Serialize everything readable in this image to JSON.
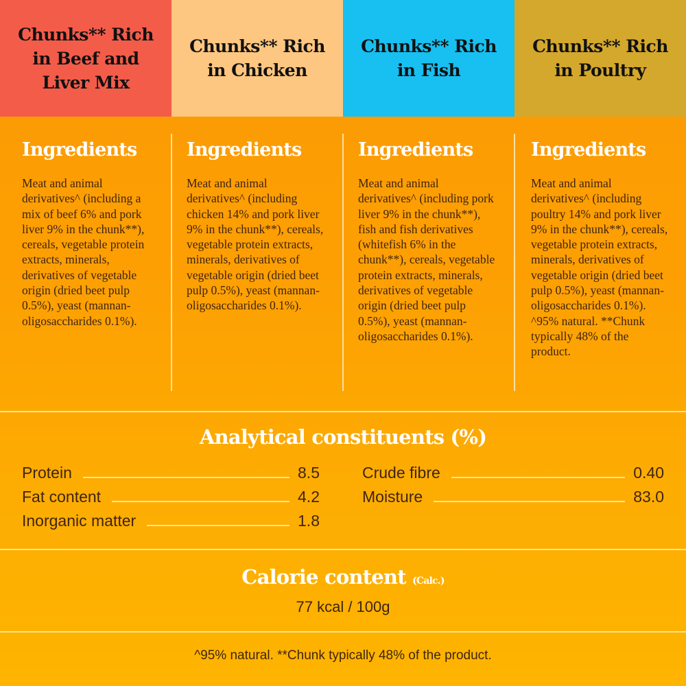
{
  "colors": {
    "beef": "#f45c4a",
    "chicken": "#fdc681",
    "fish": "#17c0f0",
    "poultry": "#d4a82d",
    "background": "#fca003",
    "text": "#3f2410"
  },
  "variants": [
    {
      "title": "Chunks** Rich in Beef and Liver Mix",
      "heading": "Ingredients",
      "text": "Meat and animal derivatives^ (including a mix of beef 6% and pork liver 9% in the chunk**), cereals, vegetable protein extracts, minerals, derivatives of vegetable origin (dried beet pulp 0.5%), yeast (mannan-oligosaccharides 0.1%)."
    },
    {
      "title": "Chunks** Rich in Chicken",
      "heading": "Ingredients",
      "text": "Meat and animal derivatives^ (including chicken 14% and pork liver 9% in the chunk**), cereals, vegetable protein extracts, minerals, derivatives of vegetable origin (dried beet pulp 0.5%), yeast (mannan-oligosaccharides 0.1%)."
    },
    {
      "title": "Chunks** Rich in Fish",
      "heading": "Ingredients",
      "text": "Meat and animal derivatives^ (including pork liver 9% in the chunk**), fish and fish derivatives (whitefish 6% in the chunk**), cereals, vegetable protein extracts, minerals, derivatives of vegetable origin (dried beet pulp 0.5%), yeast (mannan-oligosaccharides 0.1%)."
    },
    {
      "title": "Chunks** Rich in Poultry",
      "heading": "Ingredients",
      "text": "Meat and animal derivatives^ (including poultry 14% and pork liver 9% in the chunk**), cereals, vegetable protein extracts, minerals, derivatives of vegetable origin (dried beet pulp 0.5%), yeast (mannan-oligosaccharides 0.1%). ^95% natural. **Chunk typically 48% of the product."
    }
  ],
  "analytical": {
    "title": "Analytical constituents (%)",
    "left": [
      {
        "label": "Protein",
        "value": "8.5"
      },
      {
        "label": "Fat content",
        "value": "4.2"
      },
      {
        "label": "Inorganic matter",
        "value": "1.8"
      }
    ],
    "right": [
      {
        "label": "Crude fibre",
        "value": "0.40"
      },
      {
        "label": "Moisture",
        "value": "83.0"
      }
    ]
  },
  "calorie": {
    "title": "Calorie content",
    "note": "(Calc.)",
    "value": "77 kcal / 100g"
  },
  "footer": "^95% natural. **Chunk typically 48% of the product."
}
